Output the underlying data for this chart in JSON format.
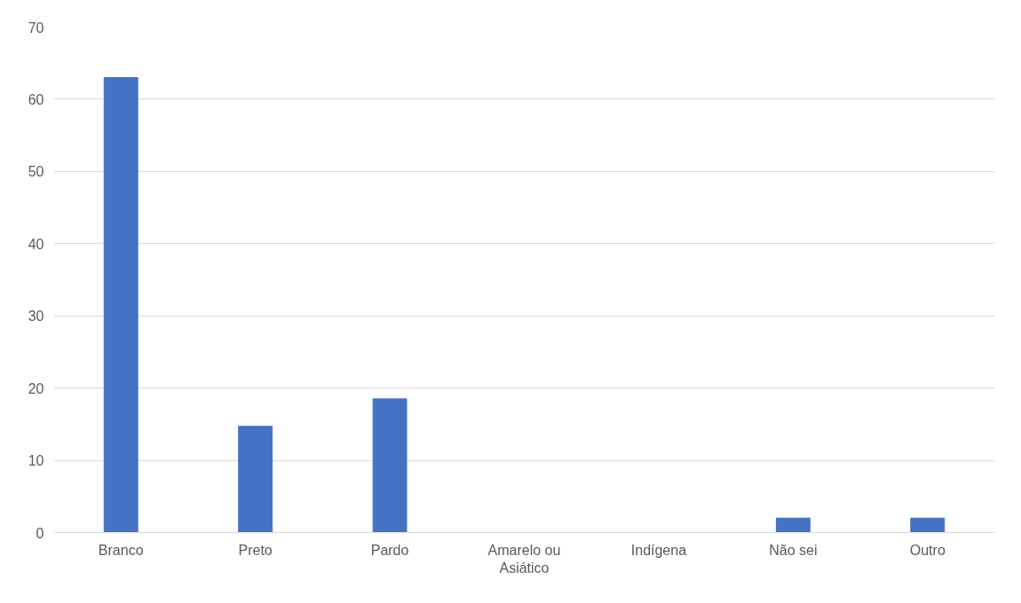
{
  "chart_data": {
    "type": "bar",
    "categories": [
      "Branco",
      "Preto",
      "Pardo",
      "Amarelo ou Asiático",
      "Indígena",
      "Não sei",
      "Outro"
    ],
    "values": [
      63,
      14.7,
      18.5,
      0,
      0,
      2,
      2
    ],
    "color": "#4472c4",
    "ylim": [
      0,
      70
    ],
    "yticks": [
      0,
      10,
      20,
      30,
      40,
      50,
      60,
      70
    ],
    "grid": "y"
  }
}
